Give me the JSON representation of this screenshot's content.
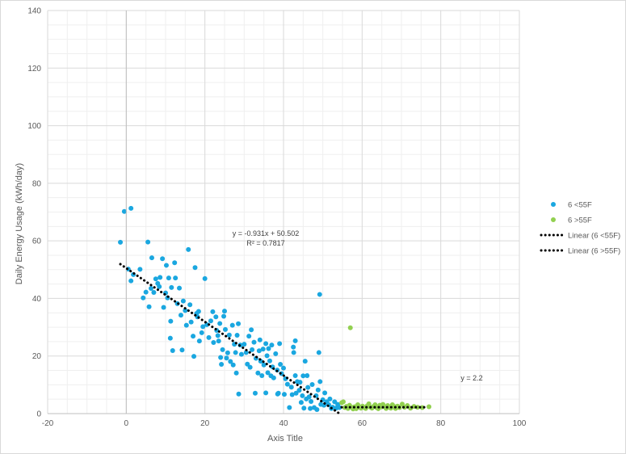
{
  "chart_data": {
    "type": "scatter",
    "title": "",
    "xlabel": "Axis Title",
    "ylabel": "Daily Energy Usage (kWh/day)",
    "xlim": [
      -20,
      100
    ],
    "ylim": [
      0,
      140
    ],
    "x_ticks": [
      -20,
      0,
      20,
      40,
      60,
      80,
      100
    ],
    "y_ticks": [
      0,
      20,
      40,
      60,
      80,
      100,
      120,
      140
    ],
    "grid": true,
    "legend_position": "right",
    "colors": {
      "series_below": "#1aa7e0",
      "series_above": "#92d050",
      "trendline": "#000000",
      "grid": "#d9d9d9"
    },
    "series": [
      {
        "name": "6 <55F",
        "color": "#1aa7e0",
        "points": [
          [
            -1.5,
            59.5
          ],
          [
            -0.5,
            70.2
          ],
          [
            1.2,
            71.3
          ],
          [
            0.5,
            50.2
          ],
          [
            1.2,
            46.1
          ],
          [
            1.8,
            48.3
          ],
          [
            3.5,
            50.1
          ],
          [
            4.3,
            40.2
          ],
          [
            5,
            42.2
          ],
          [
            5.5,
            59.6
          ],
          [
            5.8,
            37.1
          ],
          [
            6.5,
            54.1
          ],
          [
            6.3,
            43.5
          ],
          [
            7,
            42.1
          ],
          [
            7.5,
            46.8
          ],
          [
            8,
            45.2
          ],
          [
            8.6,
            47.3
          ],
          [
            8.4,
            44.1
          ],
          [
            9.2,
            53.8
          ],
          [
            9.5,
            36.9
          ],
          [
            10,
            41.9
          ],
          [
            10.2,
            51.5
          ],
          [
            10.5,
            40.2
          ],
          [
            10.8,
            47.1
          ],
          [
            11.2,
            26.2
          ],
          [
            11.3,
            32.1
          ],
          [
            11.5,
            43.8
          ],
          [
            11.8,
            21.9
          ],
          [
            12.3,
            52.4
          ],
          [
            12.5,
            47.1
          ],
          [
            13,
            38.2
          ],
          [
            13.5,
            43.6
          ],
          [
            13.9,
            34.2
          ],
          [
            14.2,
            22.1
          ],
          [
            14.5,
            39.1
          ],
          [
            15,
            35.8
          ],
          [
            15.3,
            30.7
          ],
          [
            15.8,
            57
          ],
          [
            16.2,
            37.8
          ],
          [
            16.5,
            31.8
          ],
          [
            17,
            26.9
          ],
          [
            17.2,
            19.9
          ],
          [
            17.5,
            50.7
          ],
          [
            17.9,
            34.8
          ],
          [
            18.1,
            33.6
          ],
          [
            18.4,
            35.5
          ],
          [
            18.6,
            25.2
          ],
          [
            19.2,
            28.1
          ],
          [
            19.5,
            30.2
          ],
          [
            20,
            46.9
          ],
          [
            20.5,
            30.9
          ],
          [
            21,
            26.4
          ],
          [
            21.5,
            32.2
          ],
          [
            22,
            35.4
          ],
          [
            22.2,
            24.7
          ],
          [
            22.8,
            33.6
          ],
          [
            23,
            28.9
          ],
          [
            23.3,
            27.1
          ],
          [
            23.5,
            25.2
          ],
          [
            23.8,
            31.3
          ],
          [
            24,
            19.5
          ],
          [
            24.2,
            17.1
          ],
          [
            24.5,
            22.2
          ],
          [
            24.8,
            33.8
          ],
          [
            25,
            35.6
          ],
          [
            25.2,
            29.2
          ],
          [
            25.5,
            19.3
          ],
          [
            25.8,
            21.1
          ],
          [
            26.2,
            27.3
          ],
          [
            26.5,
            18.1
          ],
          [
            27,
            30.7
          ],
          [
            27.2,
            16.9
          ],
          [
            27.5,
            24.1
          ],
          [
            27.8,
            21.2
          ],
          [
            28,
            14.1
          ],
          [
            28.2,
            27.2
          ],
          [
            28.5,
            31.2
          ],
          [
            28.6,
            6.8
          ],
          [
            29,
            23.8
          ],
          [
            29.3,
            20.6
          ],
          [
            30,
            24.1
          ],
          [
            30.5,
            21.2
          ],
          [
            30.8,
            17.2
          ],
          [
            31.2,
            26.9
          ],
          [
            31.5,
            16.1
          ],
          [
            31.8,
            29.1
          ],
          [
            32,
            22.2
          ],
          [
            32.5,
            24.8
          ],
          [
            32.8,
            7.1
          ],
          [
            33,
            19.2
          ],
          [
            33.5,
            14.1
          ],
          [
            33.8,
            21.8
          ],
          [
            34,
            25.6
          ],
          [
            34.2,
            18.2
          ],
          [
            34.5,
            13.2
          ],
          [
            34.8,
            22.4
          ],
          [
            35,
            16.9
          ],
          [
            35.5,
            24.3
          ],
          [
            35.5,
            7.2
          ],
          [
            35.8,
            20.1
          ],
          [
            36,
            14.2
          ],
          [
            36.2,
            22.6
          ],
          [
            36.5,
            18.3
          ],
          [
            36.8,
            13.1
          ],
          [
            37,
            23.8
          ],
          [
            37.2,
            16.2
          ],
          [
            37.5,
            12.4
          ],
          [
            38,
            20.8
          ],
          [
            38.4,
            15.1
          ],
          [
            38.5,
            6.8
          ],
          [
            38.7,
            7.1
          ],
          [
            39,
            24.3
          ],
          [
            39.2,
            17.1
          ],
          [
            39.5,
            13.9
          ],
          [
            40,
            15.8
          ],
          [
            40.2,
            6.7
          ],
          [
            40.5,
            12.1
          ],
          [
            41,
            10.2
          ],
          [
            41.5,
            2.1
          ],
          [
            42,
            9.2
          ],
          [
            42.2,
            6.6
          ],
          [
            42.5,
            23.1
          ],
          [
            42.6,
            21.2
          ],
          [
            43,
            25.3
          ],
          [
            43,
            13.2
          ],
          [
            43.2,
            7.1
          ],
          [
            43.5,
            11.1
          ],
          [
            44,
            8.1
          ],
          [
            44.2,
            10.9
          ],
          [
            44.5,
            3.9
          ],
          [
            44.8,
            6.2
          ],
          [
            45,
            13.1
          ],
          [
            45.2,
            1.9
          ],
          [
            45.5,
            18.2
          ],
          [
            45.8,
            5.1
          ],
          [
            46,
            13.2
          ],
          [
            46.2,
            9.1
          ],
          [
            46.5,
            5.8
          ],
          [
            46.8,
            1.8
          ],
          [
            47,
            4.2
          ],
          [
            47.3,
            10.1
          ],
          [
            47.8,
            2.1
          ],
          [
            48.3,
            6.2
          ],
          [
            48.5,
            1.4
          ],
          [
            48.8,
            8.2
          ],
          [
            49,
            21.2
          ],
          [
            49.2,
            41.4
          ],
          [
            49.3,
            11.1
          ],
          [
            49.5,
            3.2
          ],
          [
            50,
            4.8
          ],
          [
            50.3,
            2.9
          ],
          [
            50.5,
            7.2
          ],
          [
            51,
            4.1
          ],
          [
            51.5,
            3.1
          ],
          [
            51.8,
            5.1
          ],
          [
            52.2,
            1.8
          ],
          [
            52.5,
            2.2
          ],
          [
            53,
            4.1
          ],
          [
            53.4,
            1.9
          ],
          [
            53.8,
            3.2
          ],
          [
            54.2,
            2.1
          ]
        ],
        "trendline": {
          "name": "Linear (6 <55F)",
          "equation": "y = -0.931x + 50.502",
          "r2": "R² = 0.7817",
          "slope": -0.931,
          "intercept": 50.502,
          "x_range": [
            -1.5,
            54.2
          ]
        }
      },
      {
        "name": "6 >55F",
        "color": "#92d050",
        "points": [
          [
            54.8,
            3.8
          ],
          [
            55.2,
            4.1
          ],
          [
            55.6,
            2.1
          ],
          [
            56,
            2.5
          ],
          [
            56.4,
            1.8
          ],
          [
            56.8,
            2.9
          ],
          [
            57,
            29.8
          ],
          [
            57.3,
            2.2
          ],
          [
            57.7,
            1.6
          ],
          [
            58.1,
            2.4
          ],
          [
            58.5,
            1.7
          ],
          [
            58.9,
            3.1
          ],
          [
            59.3,
            2.3
          ],
          [
            59.7,
            1.9
          ],
          [
            60.1,
            2.6
          ],
          [
            60.5,
            2.1
          ],
          [
            60.9,
            1.8
          ],
          [
            61.3,
            2.7
          ],
          [
            61.7,
            3.4
          ],
          [
            62.1,
            2.2
          ],
          [
            62.5,
            1.9
          ],
          [
            62.9,
            2.5
          ],
          [
            63.3,
            3.1
          ],
          [
            63.7,
            2.1
          ],
          [
            64.1,
            1.7
          ],
          [
            64.5,
            2.9
          ],
          [
            64.9,
            2.3
          ],
          [
            65.3,
            3.2
          ],
          [
            65.7,
            2.4
          ],
          [
            66.1,
            1.8
          ],
          [
            66.5,
            2.8
          ],
          [
            66.9,
            2.2
          ],
          [
            67.3,
            1.9
          ],
          [
            67.7,
            3.1
          ],
          [
            68.1,
            2.5
          ],
          [
            68.5,
            1.8
          ],
          [
            69,
            2.6
          ],
          [
            69.5,
            2.1
          ],
          [
            70.2,
            3.3
          ],
          [
            70.8,
            2.2
          ],
          [
            71.5,
            2.8
          ],
          [
            72.3,
            1.9
          ],
          [
            73.2,
            2.5
          ],
          [
            74.1,
            2.2
          ],
          [
            75.3,
            2.1
          ],
          [
            77,
            2.4
          ]
        ],
        "trendline": {
          "name": "Linear (6 >55F)",
          "equation": "y = 2.2",
          "slope": 0,
          "intercept": 2.2,
          "x_range": [
            54.8,
            76.5
          ]
        }
      }
    ],
    "legend": [
      {
        "label": "6 <55F",
        "kind": "marker",
        "color": "#1aa7e0"
      },
      {
        "label": "6 >55F",
        "kind": "marker",
        "color": "#92d050"
      },
      {
        "label": "Linear (6 <55F)",
        "kind": "dotted-line",
        "color": "#000000"
      },
      {
        "label": "Linear (6 >55F)",
        "kind": "dotted-line",
        "color": "#000000"
      }
    ]
  }
}
